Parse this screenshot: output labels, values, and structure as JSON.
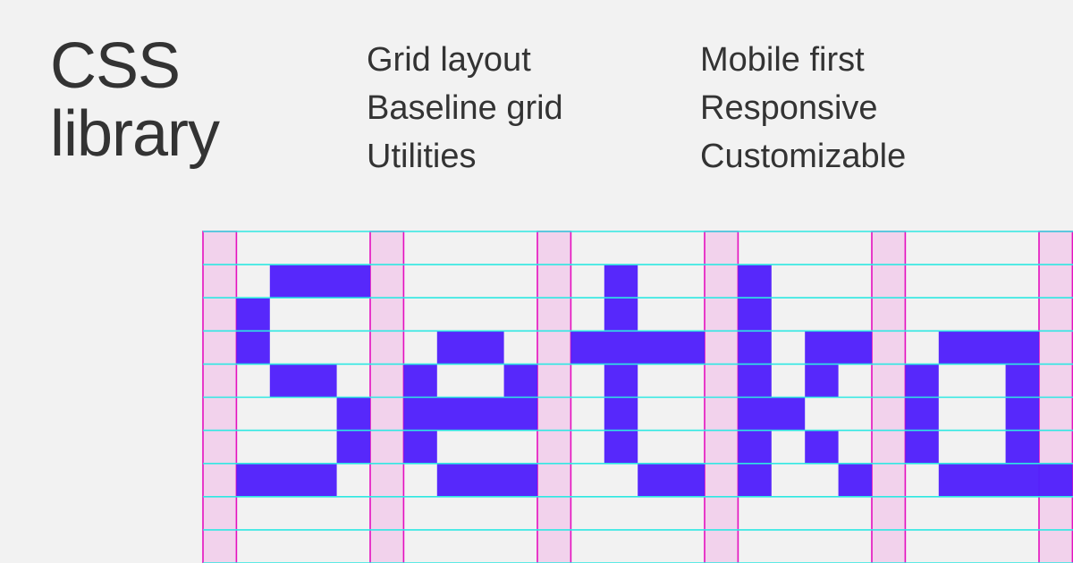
{
  "title": {
    "line1": "CSS",
    "line2": "library"
  },
  "features": {
    "col1": [
      "Grid layout",
      "Baseline grid",
      "Utilities"
    ],
    "col2": [
      "Mobile first",
      "Responsive",
      "Customizable"
    ]
  },
  "logo": {
    "name_lettering": "Setka",
    "block_color": "#5221fb",
    "column_fill": "#f2d2ec",
    "column_border": "#e40fbf",
    "baseline_color": "#2ee8e2"
  }
}
